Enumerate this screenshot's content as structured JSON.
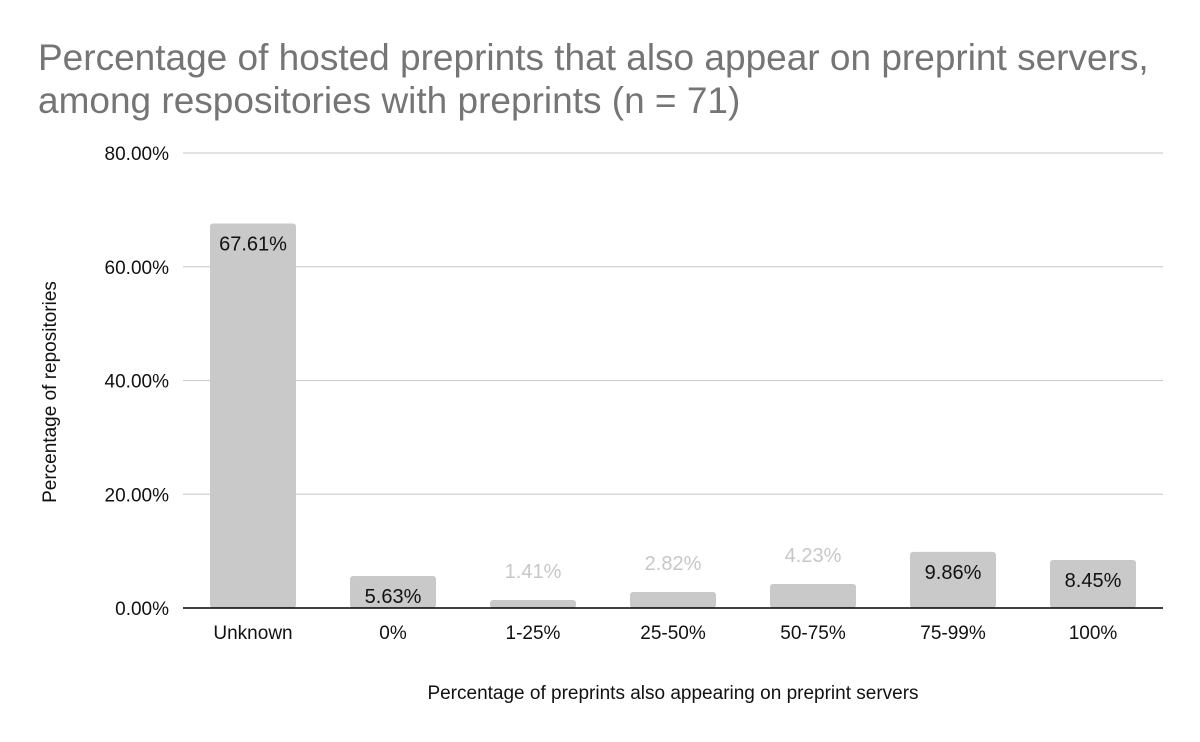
{
  "chart_data": {
    "type": "bar",
    "title_lines": [
      "Percentage of hosted preprints that also appear on preprint servers,",
      "among respositories with preprints (n = 71)"
    ],
    "xlabel": "Percentage of preprints also appearing on preprint servers",
    "ylabel": "Percentage of repositories",
    "categories": [
      "Unknown",
      "0%",
      "1-25%",
      "25-50%",
      "50-75%",
      "75-99%",
      "100%"
    ],
    "values": [
      67.61,
      5.63,
      1.41,
      2.82,
      4.23,
      9.86,
      8.45
    ],
    "data_labels": [
      "67.61%",
      "5.63%",
      "1.41%",
      "2.82%",
      "4.23%",
      "9.86%",
      "8.45%"
    ],
    "y_ticks": [
      "0.00%",
      "20.00%",
      "40.00%",
      "60.00%",
      "80.00%"
    ],
    "y_tick_values": [
      0,
      20,
      40,
      60,
      80
    ],
    "ylim": [
      0,
      80
    ],
    "grid": true,
    "legend": "none",
    "colors": {
      "bar": "#c9c9c9",
      "grid": "#d0d0d0",
      "axis": "#000000",
      "label_dark": "#111111",
      "label_light": "#c7c7c7",
      "title": "#757575"
    }
  }
}
